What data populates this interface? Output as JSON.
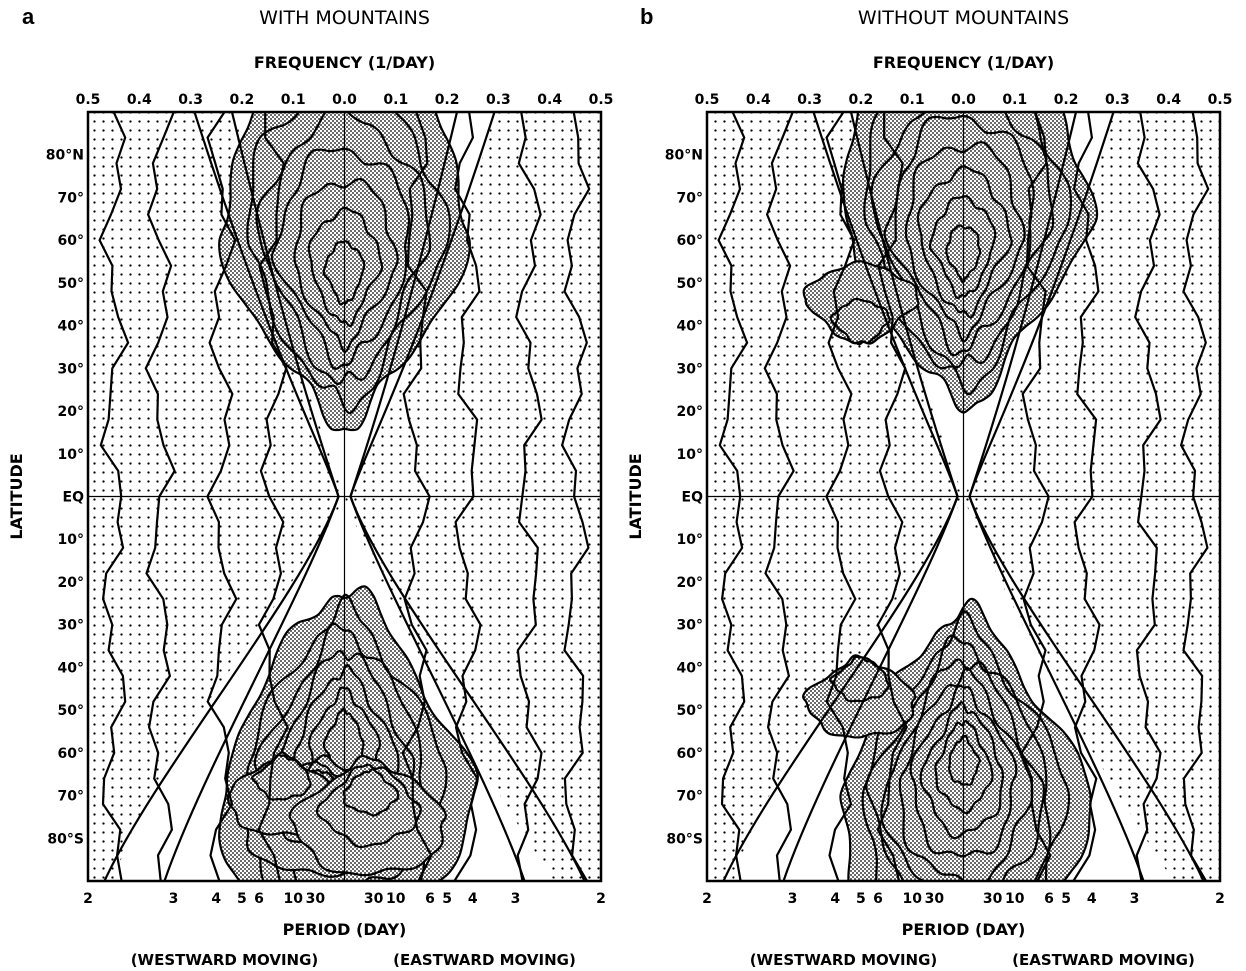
{
  "chart_data": [
    {
      "type": "heatmap",
      "panel": "a",
      "title": "WITH MOUNTAINS",
      "top_axis_label": "FREQUENCY (1/DAY)",
      "top_ticks": [
        "0.5",
        "0.4",
        "0.3",
        "0.2",
        "0.1",
        "0.0",
        "0.1",
        "0.2",
        "0.3",
        "0.4",
        "0.5"
      ],
      "bottom_axis_label": "PERIOD (DAY)",
      "bottom_ticks": [
        "2",
        "3",
        "4",
        "5",
        "6",
        "10",
        "30",
        "30",
        "10",
        "6",
        "5",
        "4",
        "3",
        "2"
      ],
      "direction_labels": [
        "(WESTWARD MOVING)",
        "(EASTWARD MOVING)"
      ],
      "ylabel": "LATITUDE",
      "y_ticks": [
        "80°N",
        "70°",
        "60°",
        "50°",
        "40°",
        "30°",
        "20°",
        "10°",
        "EQ",
        "10°",
        "20°",
        "30°",
        "40°",
        "50°",
        "60°",
        "70°",
        "80°S"
      ],
      "x_range": [
        -0.5,
        0.5
      ],
      "y_range": [
        -90,
        90
      ],
      "shaded_peaks": [
        {
          "frequency": 0.0,
          "latitude": 60,
          "level": 4
        },
        {
          "frequency": 0.0,
          "latitude": -65,
          "level": 4
        },
        {
          "frequency": -0.05,
          "latitude": -75,
          "level": 2
        },
        {
          "frequency": -0.12,
          "latitude": -70,
          "level": 1
        },
        {
          "frequency": 0.05,
          "latitude": -75,
          "level": 2
        }
      ],
      "dotted_region": "outer"
    },
    {
      "type": "heatmap",
      "panel": "b",
      "title": "WITHOUT MOUNTAINS",
      "top_axis_label": "FREQUENCY (1/DAY)",
      "top_ticks": [
        "0.5",
        "0.4",
        "0.3",
        "0.2",
        "0.1",
        "0.0",
        "0.1",
        "0.2",
        "0.3",
        "0.4",
        "0.5"
      ],
      "bottom_axis_label": "PERIOD (DAY)",
      "bottom_ticks": [
        "2",
        "3",
        "4",
        "5",
        "6",
        "10",
        "30",
        "30",
        "10",
        "6",
        "5",
        "4",
        "3",
        "2"
      ],
      "direction_labels": [
        "(WESTWARD MOVING)",
        "(EASTWARD MOVING)"
      ],
      "ylabel": "LATITUDE",
      "y_ticks": [
        "80°N",
        "70°",
        "60°",
        "50°",
        "40°",
        "30°",
        "20°",
        "10°",
        "EQ",
        "10°",
        "20°",
        "30°",
        "40°",
        "50°",
        "60°",
        "70°",
        "80°S"
      ],
      "x_range": [
        -0.5,
        0.5
      ],
      "y_range": [
        -90,
        90
      ],
      "shaded_peaks": [
        {
          "frequency": 0.0,
          "latitude": 65,
          "level": 5
        },
        {
          "frequency": 0.0,
          "latitude": -70,
          "level": 6
        },
        {
          "frequency": -0.2,
          "latitude": 45,
          "level": 1
        },
        {
          "frequency": -0.2,
          "latitude": -47,
          "level": 1
        }
      ],
      "dotted_region": "outer"
    }
  ]
}
